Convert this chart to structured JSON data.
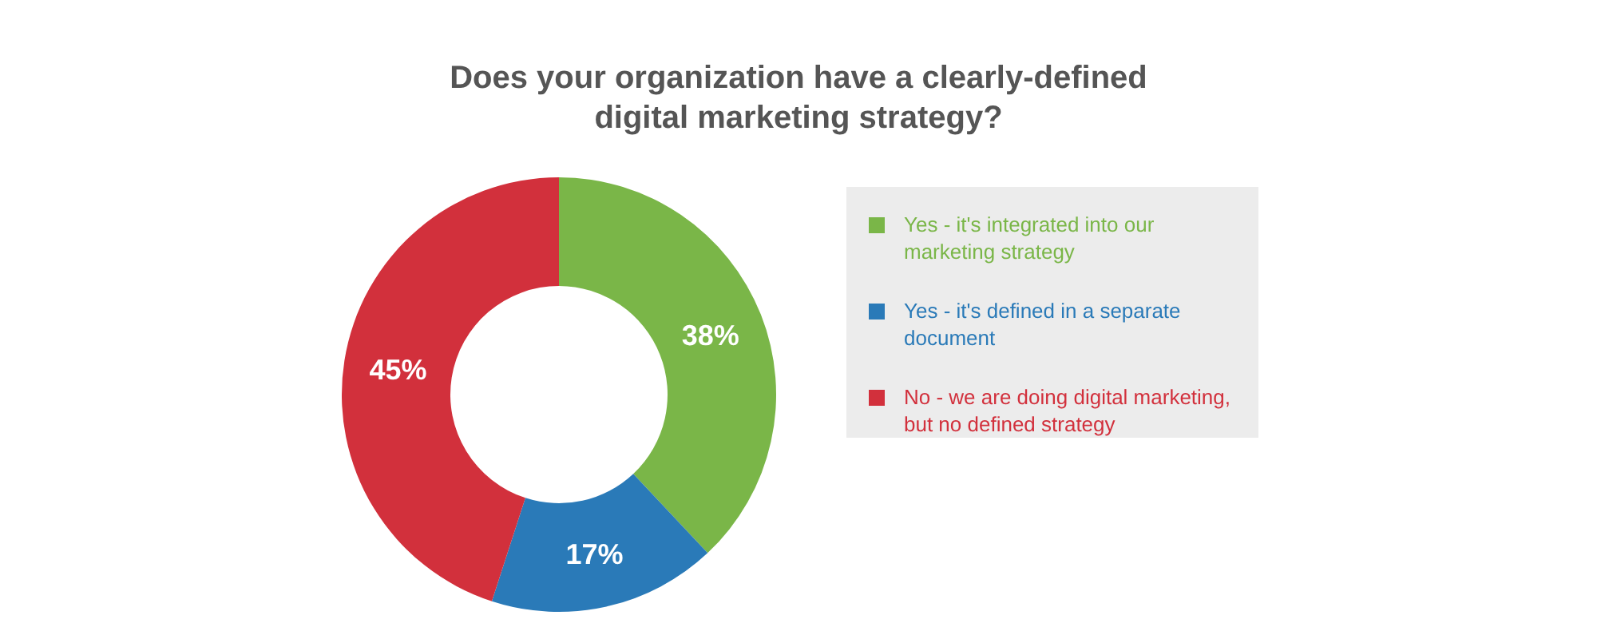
{
  "chart_data": {
    "type": "donut",
    "title": "Does your organization have a clearly-defined digital marketing strategy?",
    "categories": [
      "Yes - it's integrated into our marketing strategy",
      "Yes - it's defined in a separate document",
      "No - we are doing digital marketing, but no defined strategy"
    ],
    "values": [
      38,
      17,
      45
    ],
    "colors": [
      "#7ab648",
      "#2a7ab8",
      "#d2303c"
    ],
    "value_labels": [
      "38%",
      "17%",
      "45%"
    ],
    "legend": "right"
  }
}
